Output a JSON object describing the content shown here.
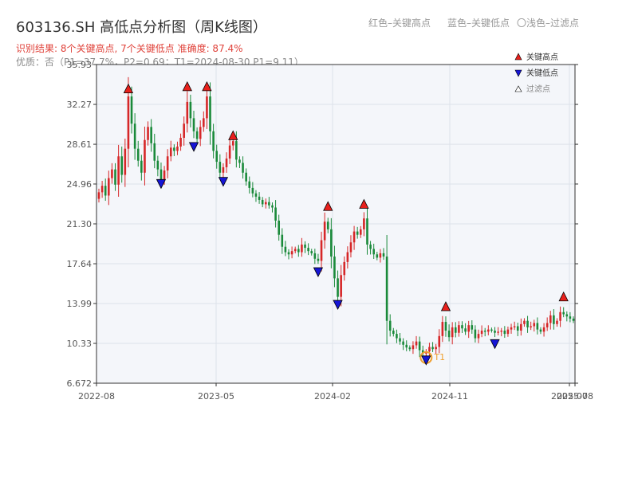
{
  "header": {
    "title": "603136.SH 高低点分析图（周K线图）",
    "legend_red": "红色–关键高点",
    "legend_blue": "蓝色–关键低点",
    "legend_light": "〇浅色–过滤点",
    "result": "识别结果: 8个关键高点, 7个关键低点   准确度: 87.4%",
    "quality": "优质：否（P1=37.7%，P2=0.69；T1=2024-08-30 P1=9.11）"
  },
  "colors": {
    "up": "#d62728",
    "down": "#1a8a3a",
    "high": "#e8201c",
    "low": "#1515d6",
    "filtered": "#f0a030"
  },
  "chart_data": {
    "type": "candlestick",
    "title": "603136.SH 高低点分析图（周K线图）",
    "ylim": [
      6.672,
      35.93
    ],
    "y_ticks": [
      "6.672",
      "10.33",
      "13.99",
      "17.64",
      "21.30",
      "24.96",
      "28.61",
      "32.27",
      "35.93"
    ],
    "x_ticks": [
      "2022-08",
      "2023-05",
      "2024-02",
      "2024-11",
      "2025-07",
      "2025-08"
    ],
    "legend": [
      "关键高点",
      "关键低点",
      "过滤点"
    ],
    "legend_position": "top-right",
    "filtered_label": "T1",
    "closes": [
      24.2,
      24.8,
      23.9,
      25.5,
      26.3,
      24.9,
      27.5,
      25.8,
      28.2,
      33.0,
      30.5,
      28.2,
      27.1,
      26.0,
      29.0,
      30.2,
      28.7,
      27.1,
      26.3,
      25.3,
      26.2,
      27.5,
      28.3,
      28.0,
      28.4,
      29.2,
      30.5,
      32.5,
      31.0,
      29.8,
      29.1,
      30.2,
      31.0,
      33.0,
      29.8,
      28.0,
      27.0,
      26.0,
      26.5,
      27.3,
      28.5,
      28.9,
      27.2,
      26.9,
      26.0,
      25.2,
      24.6,
      24.1,
      23.8,
      23.5,
      23.1,
      23.3,
      23.0,
      22.8,
      21.6,
      20.3,
      19.2,
      18.7,
      18.5,
      18.8,
      19.0,
      18.7,
      19.4,
      19.1,
      18.8,
      18.6,
      18.1,
      17.9,
      19.8,
      21.5,
      20.8,
      18.3,
      16.3,
      14.6,
      16.6,
      17.8,
      18.7,
      19.6,
      20.6,
      20.3,
      20.8,
      21.8,
      19.4,
      19.0,
      18.5,
      18.2,
      18.6,
      18.3,
      12.4,
      11.5,
      11.2,
      10.8,
      10.5,
      10.2,
      9.95,
      9.8,
      10.15,
      10.5,
      9.7,
      9.4,
      9.6,
      10.0,
      9.8,
      10.0,
      11.0,
      12.3,
      11.5,
      10.9,
      11.8,
      11.3,
      12.0,
      11.7,
      11.4,
      12.0,
      11.6,
      10.8,
      11.2,
      11.5,
      11.4,
      11.6,
      11.5,
      11.3,
      11.4,
      11.5,
      11.2,
      11.6,
      11.8,
      11.9,
      11.5,
      12.1,
      12.4,
      11.8,
      11.9,
      12.2,
      11.6,
      11.4,
      11.8,
      12.2,
      12.9,
      12.1,
      12.4,
      13.2,
      13.0,
      12.8,
      12.6,
      12.4
    ],
    "key_highs": [
      {
        "index": 9,
        "price": 33.4
      },
      {
        "index": 27,
        "price": 33.6
      },
      {
        "index": 33,
        "price": 33.6
      },
      {
        "index": 41,
        "price": 29.1
      },
      {
        "index": 70,
        "price": 22.6
      },
      {
        "index": 81,
        "price": 22.8
      },
      {
        "index": 106,
        "price": 13.4
      },
      {
        "index": 142,
        "price": 14.3
      }
    ],
    "key_lows": [
      {
        "index": 19,
        "price": 25.3
      },
      {
        "index": 29,
        "price": 28.7
      },
      {
        "index": 38,
        "price": 25.5
      },
      {
        "index": 67,
        "price": 17.2
      },
      {
        "index": 73,
        "price": 14.2
      },
      {
        "index": 100,
        "price": 9.1
      },
      {
        "index": 121,
        "price": 10.6
      }
    ],
    "filtered_points": [
      {
        "index": 100,
        "price": 9.1
      }
    ]
  }
}
